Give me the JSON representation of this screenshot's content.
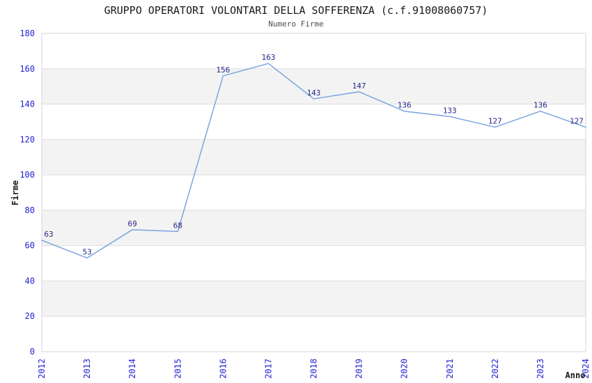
{
  "chart_data": {
    "type": "line",
    "title": "GRUPPO OPERATORI VOLONTARI DELLA SOFFERENZA (c.f.91008060757)",
    "subtitle": "Numero Firme",
    "xlabel": "Anno",
    "ylabel": "Firme",
    "categories": [
      "2012",
      "2013",
      "2014",
      "2015",
      "2016",
      "2017",
      "2018",
      "2019",
      "2020",
      "2021",
      "2022",
      "2023",
      "2024"
    ],
    "values": [
      63,
      53,
      69,
      68,
      156,
      163,
      143,
      147,
      136,
      133,
      127,
      136,
      127
    ],
    "ylim": [
      0,
      180
    ],
    "yticks": [
      0,
      20,
      40,
      60,
      80,
      100,
      120,
      140,
      160,
      180
    ],
    "grid": "horizontal gridlines every 20 with alternating shaded bands",
    "legend": "none",
    "colors": {
      "line": "#7aa4e0",
      "tick_label": "#2323d0",
      "data_label": "#26268a",
      "title": "#1a1a1a",
      "subtitle": "#4d4d4d",
      "axis_title": "#1a1a1a",
      "band_alt": "#f3f3f3",
      "band_base": "#ffffff",
      "gridline": "#dedede",
      "plot_border": "#d6d6d6"
    }
  }
}
